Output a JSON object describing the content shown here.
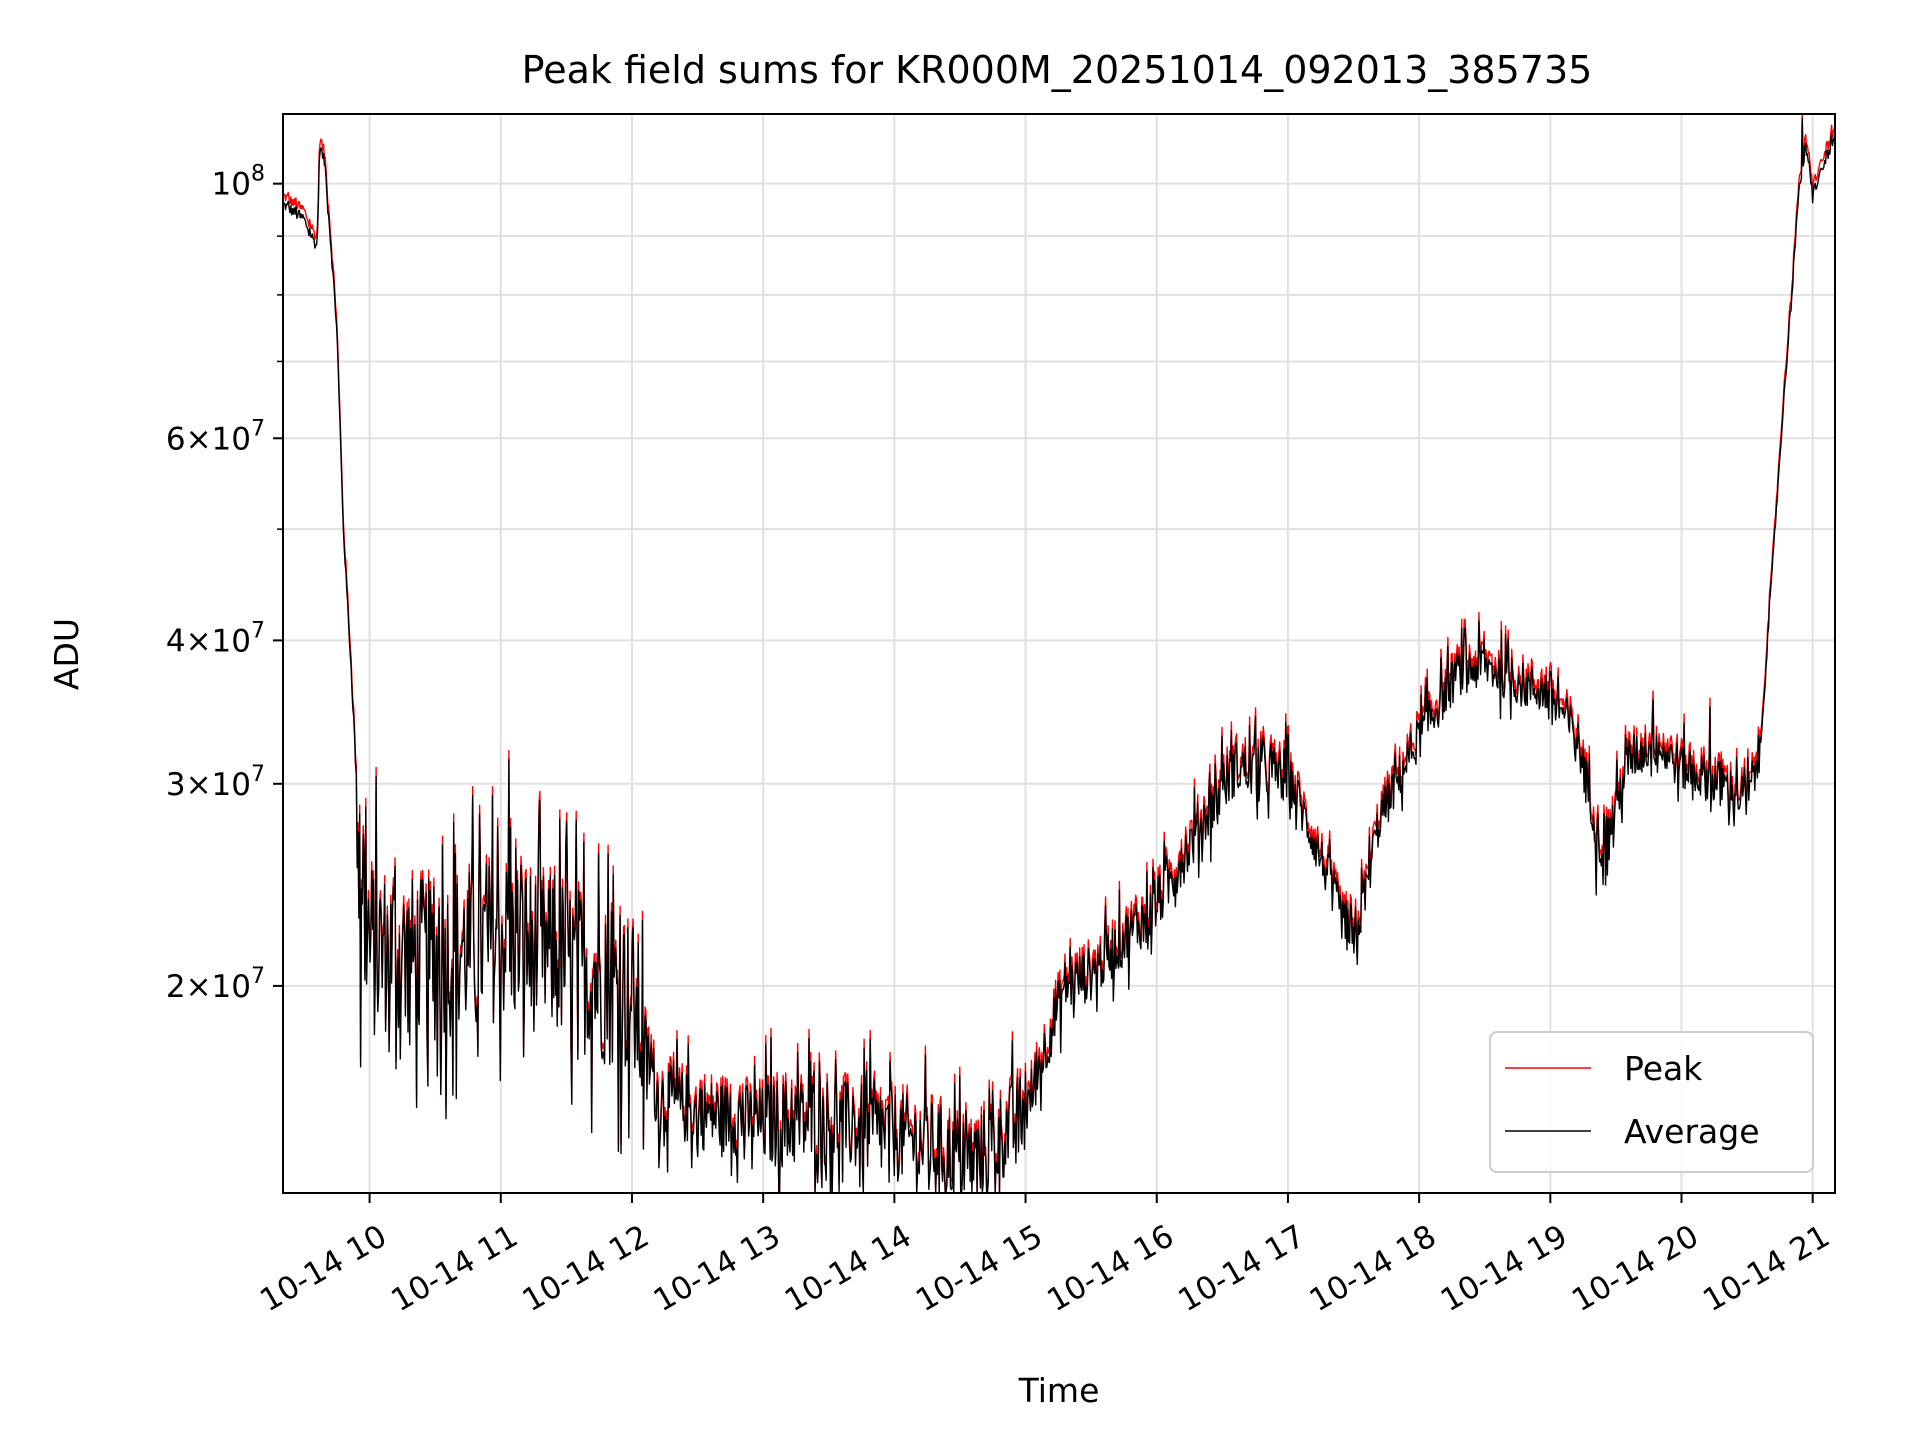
{
  "chart_data": {
    "type": "line",
    "title": "Peak field sums for KR000M_20251014_092013_385735",
    "xlabel": "Time",
    "ylabel": "ADU",
    "yscale": "log",
    "grid": true,
    "legend_position": "lower-right",
    "xlim_hours": [
      9.34,
      21.17
    ],
    "ylim": [
      13200000,
      115000000
    ],
    "x_ticks": [
      {
        "value": 10,
        "label": "10-14 10"
      },
      {
        "value": 11,
        "label": "10-14 11"
      },
      {
        "value": 12,
        "label": "10-14 12"
      },
      {
        "value": 13,
        "label": "10-14 13"
      },
      {
        "value": 14,
        "label": "10-14 14"
      },
      {
        "value": 15,
        "label": "10-14 15"
      },
      {
        "value": 16,
        "label": "10-14 16"
      },
      {
        "value": 17,
        "label": "10-14 17"
      },
      {
        "value": 18,
        "label": "10-14 18"
      },
      {
        "value": 19,
        "label": "10-14 19"
      },
      {
        "value": 20,
        "label": "10-14 20"
      },
      {
        "value": 21,
        "label": "10-14 21"
      }
    ],
    "y_ticks": [
      {
        "value": 20000000,
        "base": "2",
        "exp": "7"
      },
      {
        "value": 30000000,
        "base": "3",
        "exp": "7"
      },
      {
        "value": 40000000,
        "base": "4",
        "exp": "7"
      },
      {
        "value": 60000000,
        "base": "6",
        "exp": "7"
      },
      {
        "value": 100000000,
        "base": "",
        "exp": "8"
      }
    ],
    "y_minor_ticks": [
      50000000,
      70000000,
      80000000,
      90000000
    ],
    "series": [
      {
        "name": "Peak",
        "color": "#ff0000",
        "offset_factor": 1.018
      },
      {
        "name": "Average",
        "color": "#000000",
        "offset_factor": 1.0
      }
    ],
    "baseline": {
      "x_hours": [
        9.34,
        9.5,
        9.6,
        9.62,
        9.66,
        9.75,
        9.8,
        9.87,
        9.9,
        9.95,
        10.0,
        10.5,
        11.0,
        11.5,
        12.0,
        12.2,
        12.5,
        13.0,
        13.5,
        14.0,
        14.3,
        14.6,
        15.0,
        15.3,
        15.5,
        16.0,
        16.4,
        16.6,
        17.0,
        17.3,
        17.5,
        17.7,
        18.0,
        18.3,
        18.5,
        18.8,
        19.0,
        19.2,
        19.4,
        19.6,
        19.8,
        20.0,
        20.3,
        20.5,
        20.6,
        20.75,
        20.9,
        20.95,
        21.0,
        21.17
      ],
      "values": [
        96000000,
        93000000,
        88000000,
        108000000,
        104000000,
        75000000,
        50000000,
        36000000,
        30000000,
        25000000,
        21500000,
        21000000,
        22000000,
        21000000,
        19500000,
        16000000,
        15500000,
        15200000,
        15200000,
        14800000,
        14500000,
        14000000,
        15500000,
        20000000,
        20500000,
        23500000,
        28500000,
        31000000,
        30500000,
        25000000,
        21500000,
        28000000,
        33000000,
        37500000,
        38000000,
        36500000,
        36000000,
        33000000,
        26000000,
        31500000,
        32500000,
        31000000,
        30000000,
        29000000,
        32000000,
        58000000,
        100000000,
        107000000,
        98000000,
        110000000
      ]
    },
    "noise": [
      {
        "x_start": 9.9,
        "x_end": 10.1,
        "amplitude": 0.1
      },
      {
        "x_start": 10.1,
        "x_end": 12.1,
        "amplitude": 0.09
      },
      {
        "x_start": 12.1,
        "x_end": 13.0,
        "amplitude": 0.04
      },
      {
        "x_start": 13.0,
        "x_end": 15.0,
        "amplitude": 0.05
      },
      {
        "x_start": 15.0,
        "x_end": 17.0,
        "amplitude": 0.03
      },
      {
        "x_start": 17.0,
        "x_end": 20.6,
        "amplitude": 0.025
      }
    ],
    "spikes": [
      {
        "x": 11.06,
        "value": 31500000
      },
      {
        "x": 9.93,
        "value": 17000000
      },
      {
        "x": 12.5,
        "value": 14200000
      },
      {
        "x": 13.35,
        "value": 18000000
      },
      {
        "x": 14.52,
        "value": 13600000
      },
      {
        "x": 16.5,
        "value": 33000000
      },
      {
        "x": 17.44,
        "value": 22000000
      },
      {
        "x": 17.62,
        "value": 27000000
      },
      {
        "x": 18.36,
        "value": 39500000
      },
      {
        "x": 19.35,
        "value": 24000000
      },
      {
        "x": 19.78,
        "value": 35500000
      },
      {
        "x": 20.22,
        "value": 35000000
      },
      {
        "x": 20.92,
        "value": 114000000
      }
    ]
  }
}
